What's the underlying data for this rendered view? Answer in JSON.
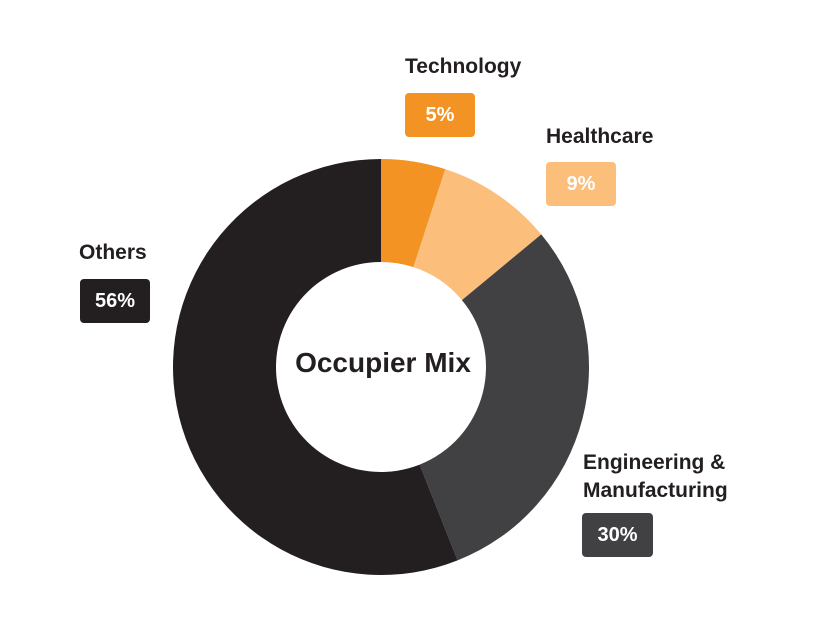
{
  "chart_data": {
    "type": "pie",
    "title": "Occupier Mix",
    "categories": [
      "Technology",
      "Healthcare",
      "Engineering & Manufacturing",
      "Others"
    ],
    "values": [
      5,
      9,
      30,
      56
    ],
    "value_labels": [
      "5%",
      "9%",
      "30%",
      "56%"
    ],
    "colors": [
      "#f39324",
      "#fbbe7b",
      "#414042",
      "#231f20"
    ],
    "donut": true,
    "legend": "none"
  }
}
